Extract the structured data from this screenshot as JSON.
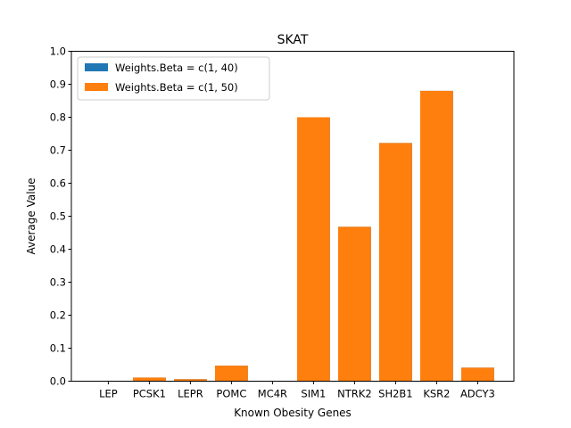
{
  "chart_data": {
    "type": "bar",
    "title": "SKAT",
    "xlabel": "Known Obesity Genes",
    "ylabel": "Average Value",
    "ylim": [
      0,
      1.0
    ],
    "yticks": [
      "0.0",
      "0.1",
      "0.2",
      "0.3",
      "0.4",
      "0.5",
      "0.6",
      "0.7",
      "0.8",
      "0.9",
      "1.0"
    ],
    "categories": [
      "LEP",
      "PCSK1",
      "LEPR",
      "POMC",
      "MC4R",
      "SIM1",
      "NTRK2",
      "SH2B1",
      "KSR2",
      "ADCY3"
    ],
    "grid": false,
    "legend_position": "top-left",
    "series": [
      {
        "name": "Weights.Beta = c(1, 40)",
        "color": "#1f77b4",
        "values": [
          0.0,
          0.011,
          0.006,
          0.047,
          0.0,
          0.8,
          0.468,
          0.722,
          0.88,
          0.041
        ]
      },
      {
        "name": "Weights.Beta = c(1, 50)",
        "color": "#ff7f0e",
        "values": [
          0.0,
          0.011,
          0.006,
          0.047,
          0.0,
          0.8,
          0.468,
          0.722,
          0.88,
          0.041
        ]
      }
    ]
  }
}
